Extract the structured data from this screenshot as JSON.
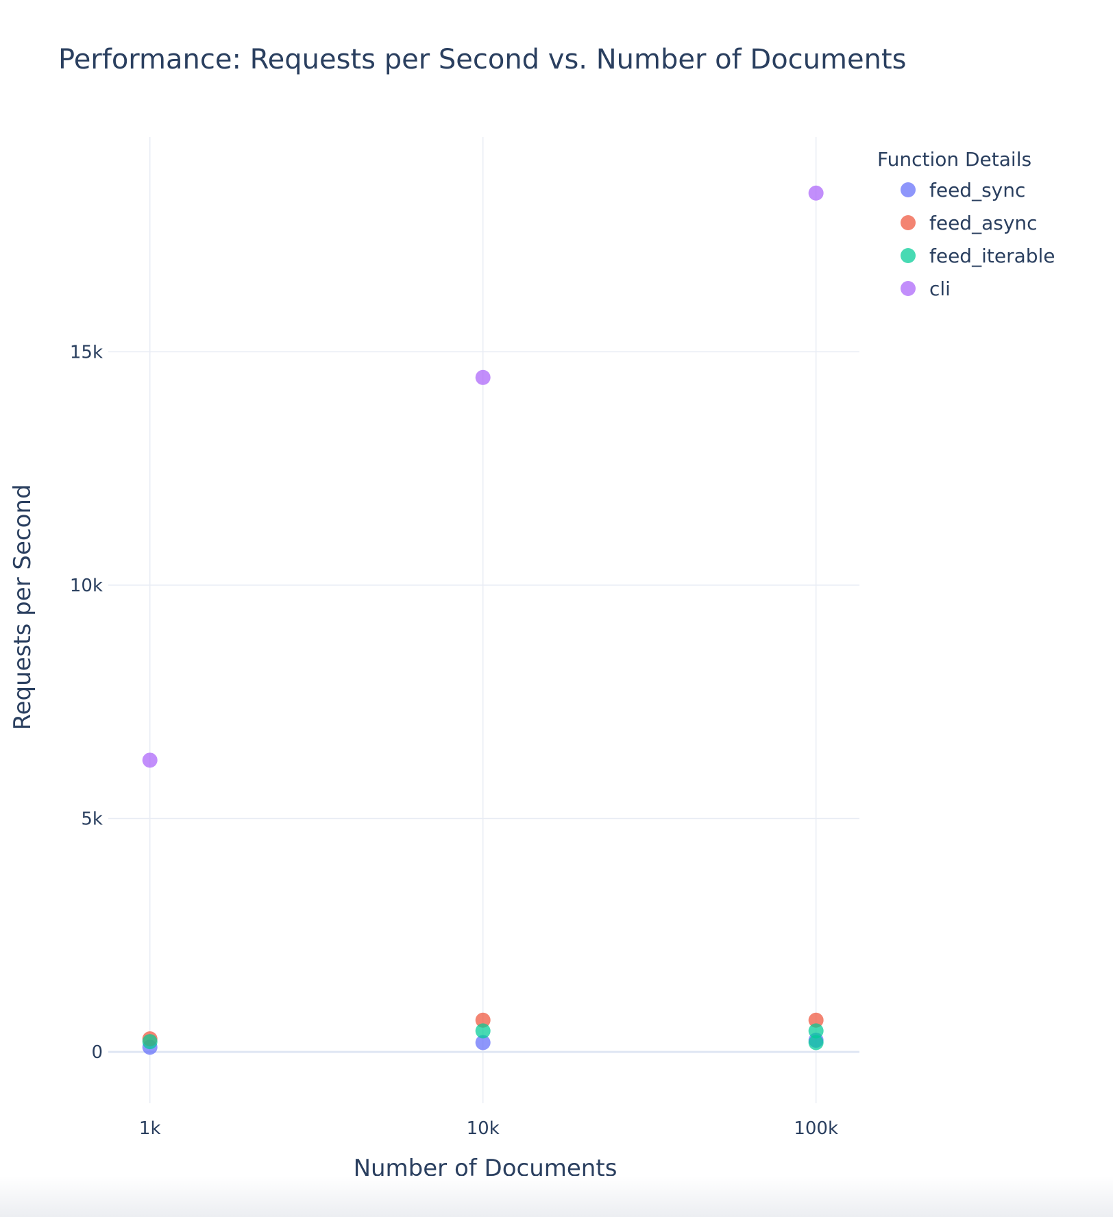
{
  "chart_data": {
    "type": "scatter",
    "title": "Performance: Requests per Second vs. Number of Documents",
    "xlabel": "Number of Documents",
    "ylabel": "Requests per Second",
    "x_scale": "log",
    "x_ticks": [
      1000,
      10000,
      100000
    ],
    "x_tick_labels": [
      "1k",
      "10k",
      "100k"
    ],
    "xlim": [
      750,
      135000
    ],
    "y_ticks": [
      0,
      5000,
      10000,
      15000
    ],
    "y_tick_labels": [
      "0",
      "5k",
      "10k",
      "15k"
    ],
    "ylim": [
      -1100,
      19600
    ],
    "grid": true,
    "legend": {
      "title": "Function Details",
      "position": "top-right"
    },
    "series": [
      {
        "name": "feed_sync",
        "color": "#636efa",
        "points": [
          [
            1000,
            100
          ],
          [
            10000,
            200
          ],
          [
            100000,
            250
          ]
        ]
      },
      {
        "name": "feed_async",
        "color": "#ef553b",
        "points": [
          [
            1000,
            280
          ],
          [
            10000,
            680
          ],
          [
            100000,
            680
          ]
        ]
      },
      {
        "name": "feed_iterable",
        "color": "#00cc96",
        "points": [
          [
            1000,
            220
          ],
          [
            10000,
            450
          ],
          [
            100000,
            450
          ],
          [
            100000,
            200
          ]
        ]
      },
      {
        "name": "cli",
        "color": "#ab63fa",
        "points": [
          [
            1000,
            6250
          ],
          [
            10000,
            14450
          ],
          [
            100000,
            18400
          ]
        ]
      }
    ]
  }
}
